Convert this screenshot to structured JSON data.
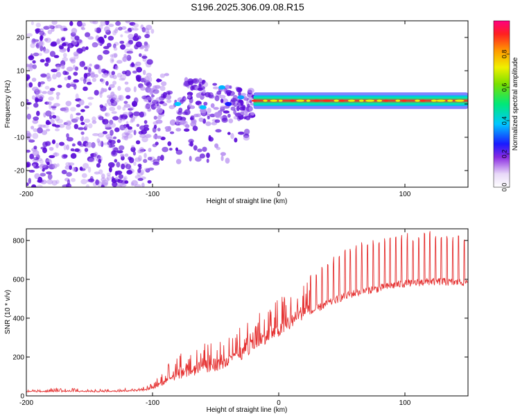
{
  "title": "S196.2025.306.09.08.R15",
  "colors": {
    "line": "#e53030",
    "axis": "#000000",
    "scatter_main": "#5a0ad8",
    "scatter_light": "#b48af0"
  },
  "chart_data": [
    {
      "type": "heatmap",
      "xlabel": "Height of straight line (km)",
      "ylabel": "Frequency (Hz)",
      "xlim": [
        -200,
        150
      ],
      "ylim": [
        -25,
        25
      ],
      "xticks": [
        -200,
        -100,
        0,
        100
      ],
      "yticks": [
        -20,
        -10,
        0,
        10,
        20
      ],
      "colorbar": {
        "label": "Normalized spectral amplitude",
        "range": [
          0,
          1
        ],
        "ticks": [
          0.0,
          0.2,
          0.4,
          0.6,
          0.8
        ],
        "tick_labels": [
          "0.0",
          "0.2",
          "0.4",
          "0.6",
          "0.8"
        ]
      },
      "regions": [
        {
          "name": "noise",
          "x": [
            -200,
            -100
          ],
          "y": [
            -25,
            25
          ],
          "amplitude": [
            0.0,
            0.18
          ]
        },
        {
          "name": "transition",
          "x": [
            -100,
            -20
          ],
          "y": [
            -17,
            10
          ],
          "amplitude": [
            0.05,
            0.35
          ]
        },
        {
          "name": "signal-band",
          "x": [
            -20,
            150
          ],
          "y": [
            0,
            2
          ],
          "amplitude": [
            0.3,
            1.0
          ]
        }
      ]
    },
    {
      "type": "line",
      "xlabel": "Height of straight line (km)",
      "ylabel": "SNR (10 * v/v)",
      "xlim": [
        -200,
        150
      ],
      "ylim": [
        0,
        860
      ],
      "xticks": [
        -200,
        -100,
        0,
        100
      ],
      "yticks": [
        0,
        200,
        400,
        600,
        800
      ],
      "series": [
        {
          "name": "SNR",
          "x": [
            -200,
            -180,
            -160,
            -140,
            -120,
            -105,
            -100,
            -90,
            -80,
            -70,
            -60,
            -50,
            -40,
            -30,
            -20,
            -10,
            0,
            10,
            20,
            30,
            40,
            50,
            60,
            70,
            80,
            90,
            100,
            110,
            120,
            130,
            140,
            150
          ],
          "base": [
            20,
            20,
            20,
            20,
            22,
            28,
            35,
            60,
            85,
            100,
            110,
            125,
            150,
            180,
            230,
            270,
            300,
            340,
            400,
            440,
            470,
            500,
            520,
            535,
            545,
            560,
            570,
            575,
            580,
            580,
            575,
            580
          ],
          "peak": [
            30,
            40,
            40,
            35,
            40,
            50,
            70,
            140,
            240,
            230,
            270,
            280,
            300,
            360,
            420,
            470,
            500,
            560,
            620,
            660,
            700,
            760,
            780,
            800,
            810,
            830,
            840,
            830,
            860,
            830,
            830,
            840
          ]
        }
      ]
    }
  ]
}
